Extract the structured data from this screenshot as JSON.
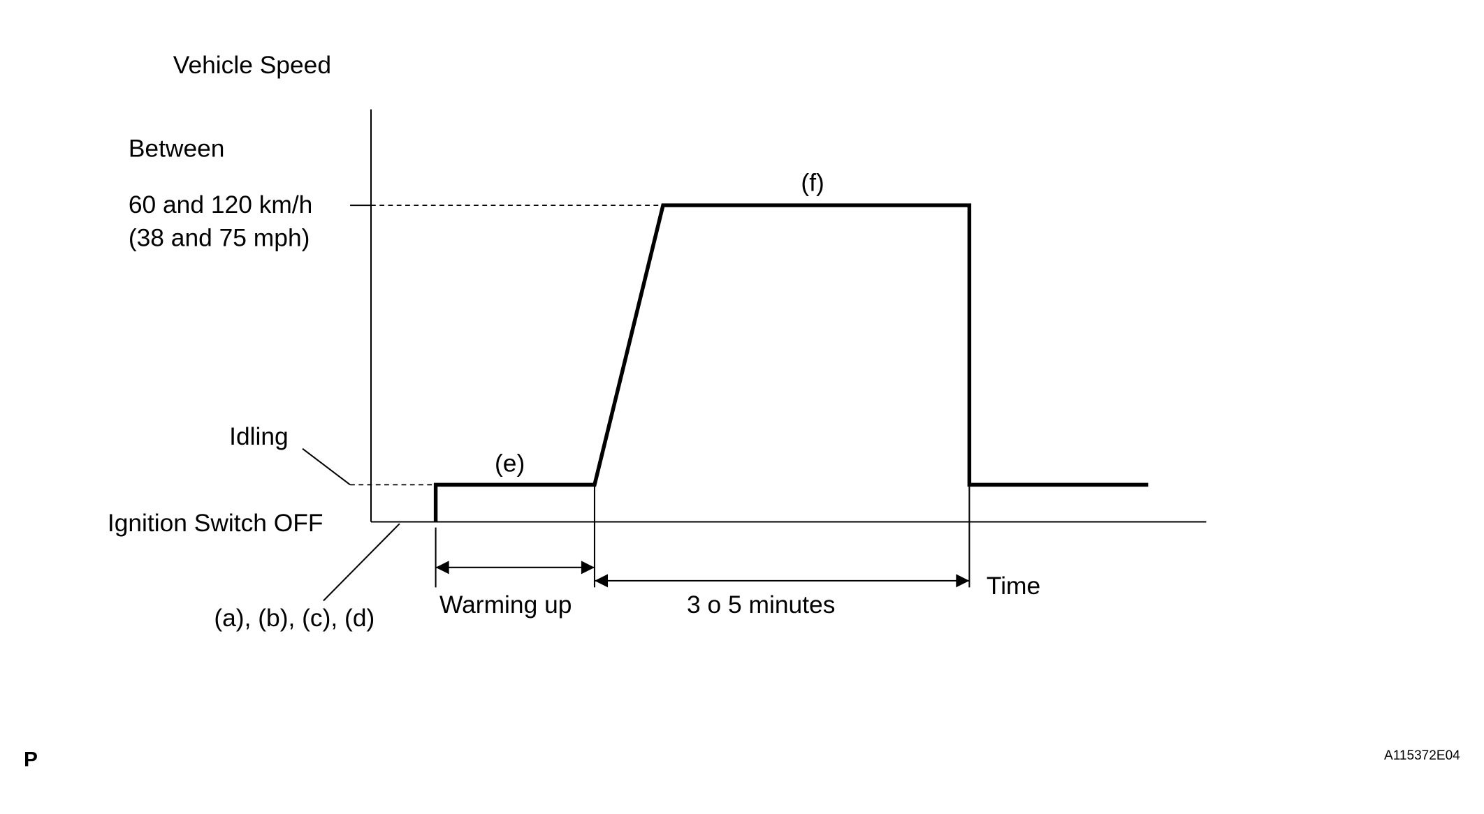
{
  "y_axis_label": "Vehicle Speed",
  "speed_labels": {
    "between": "Between",
    "high_kmh": "60 and 120 km/h",
    "high_mph": "(38 and 75 mph)",
    "idling": "Idling",
    "off": "Ignition Switch OFF"
  },
  "step_labels": {
    "warmup_step": "(e)",
    "drive_step": "(f)",
    "start_steps": "(a), (b), (c), (d)"
  },
  "durations": {
    "warming_up": "Warming up",
    "drive_time": "3 o 5 minutes"
  },
  "x_axis_label": "Time",
  "footer": {
    "left": "P",
    "code": "A115372E04"
  }
}
